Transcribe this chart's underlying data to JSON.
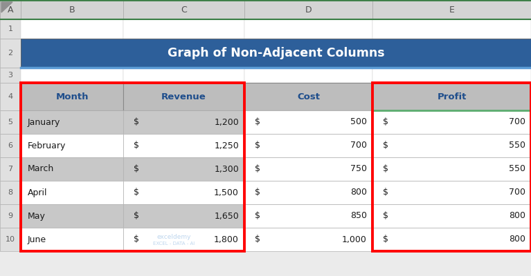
{
  "title": "Graph of Non-Adjacent Columns",
  "title_bg": "#2D5F9A",
  "title_color": "#FFFFFF",
  "table_headers": [
    "Month",
    "Revenue",
    "Cost",
    "Profit"
  ],
  "table_header_bg": "#BDBDBD",
  "table_header_color": "#1F4E8C",
  "months": [
    "January",
    "February",
    "March",
    "April",
    "May",
    "June"
  ],
  "revenue_nums": [
    "1,200",
    "1,250",
    "1,300",
    "1,500",
    "1,650",
    "1,800"
  ],
  "cost_nums": [
    "500",
    "700",
    "750",
    "800",
    "850",
    "1,000"
  ],
  "profit_nums": [
    "700",
    "550",
    "550",
    "700",
    "800",
    "800"
  ],
  "red_border": "#FF0000",
  "green_line": "#3A7D44",
  "light_green_line": "#5BAD6F",
  "col_header_bg": "#D4D4D4",
  "row_num_bg": "#E0E0E0",
  "row_bg_grey": "#C8C8C8",
  "row_bg_white": "#FFFFFF",
  "title_accent": "#5B9BD5",
  "watermark_color": "#A8C8E8"
}
